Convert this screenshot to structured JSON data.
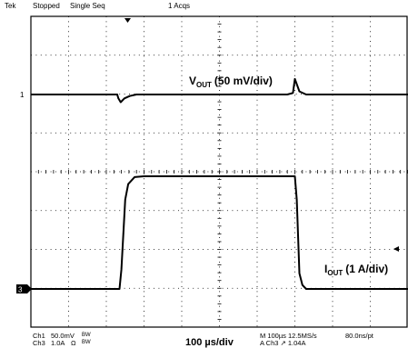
{
  "header": {
    "brand": "Tek",
    "acq_state": "Stopped",
    "seq_mode": "Single Seq",
    "acq_count": "1 Acqs"
  },
  "channel_markers": {
    "ch1": "1",
    "ch3": "3"
  },
  "footer": {
    "ch1_label": "Ch1",
    "ch1_scale": "50.0mV",
    "ch1_bw": "BW",
    "ch3_label": "Ch3",
    "ch3_scale": "1.0A",
    "ch3_ohm": "Ω",
    "ch3_bw": "BW",
    "timebase": "M 100µs 12.5MS/s",
    "record": "80.0ns/pt",
    "trigger": "A Ch3 ↗ 1.04A",
    "time_div": "100 µs/div"
  },
  "chart_data": {
    "type": "line",
    "grid": true,
    "x_divisions": 10,
    "y_divisions": 8,
    "x_range_us": [
      0,
      1000
    ],
    "series": [
      {
        "name_main": "V",
        "name_sub": "OUT",
        "name_unit": "(50 mV/div)",
        "unit": "mV",
        "baseline": 0,
        "x_us": [
          0,
          229,
          232,
          238,
          248,
          262,
          280,
          600,
          680,
          695,
          700,
          712,
          730,
          1000
        ],
        "y": [
          0,
          0,
          -5,
          -10,
          -5,
          -2,
          0,
          0,
          0,
          2,
          20,
          4,
          0,
          0
        ]
      },
      {
        "name_main": "I",
        "name_sub": "OUT",
        "name_unit": "(1 A/div)",
        "unit": "A",
        "baseline": 0,
        "x_us": [
          0,
          235,
          240,
          245,
          250,
          258,
          275,
          300,
          700,
          705,
          712,
          720,
          730,
          1000
        ],
        "y": [
          0,
          0,
          0.5,
          1.4,
          2.3,
          2.7,
          2.88,
          2.9,
          2.9,
          2.3,
          0.4,
          0.1,
          0,
          0
        ]
      }
    ]
  }
}
